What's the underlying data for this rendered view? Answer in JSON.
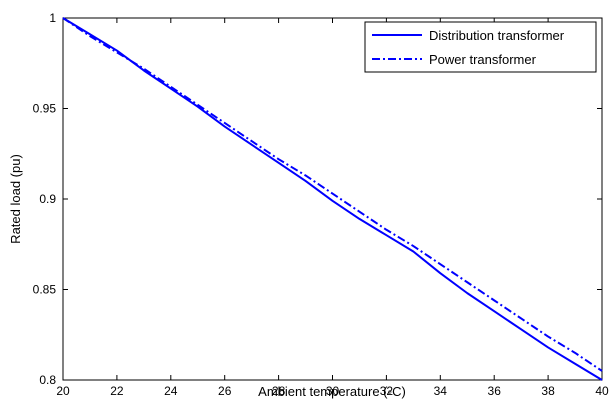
{
  "chart_data": {
    "type": "line",
    "title": "",
    "xlabel": "Ambient temperature (◦C)",
    "ylabel": "Rated load (pu)",
    "xlim": [
      20,
      40
    ],
    "ylim": [
      0.8,
      1.0
    ],
    "x_ticks": [
      20,
      22,
      24,
      26,
      28,
      30,
      32,
      34,
      36,
      38,
      40
    ],
    "x_tick_labels": [
      "20",
      "22",
      "24",
      "26",
      "28",
      "30",
      "32",
      "34",
      "36",
      "38",
      "40"
    ],
    "y_ticks": [
      0.8,
      0.85,
      0.9,
      0.95,
      1.0
    ],
    "y_tick_labels": [
      "0.8",
      "0.85",
      "0.9",
      "0.95",
      "1"
    ],
    "grid": false,
    "legend_position": "top-right",
    "series": [
      {
        "name": "Distribution transformer",
        "color": "#0000ff",
        "line_style": "solid",
        "x": [
          20,
          21,
          22,
          23,
          24,
          25,
          26,
          27,
          28,
          29,
          30,
          31,
          32,
          33,
          34,
          35,
          36,
          37,
          38,
          39,
          40
        ],
        "y": [
          1.0,
          0.991,
          0.982,
          0.971,
          0.961,
          0.951,
          0.94,
          0.93,
          0.92,
          0.91,
          0.899,
          0.889,
          0.88,
          0.871,
          0.859,
          0.848,
          0.838,
          0.828,
          0.818,
          0.809,
          0.8
        ]
      },
      {
        "name": "Power transformer",
        "color": "#0000ff",
        "line_style": "dashdot",
        "x": [
          20,
          21,
          22,
          23,
          24,
          25,
          26,
          27,
          28,
          29,
          30,
          31,
          32,
          33,
          34,
          35,
          36,
          37,
          38,
          39,
          40
        ],
        "y": [
          1.0,
          0.99,
          0.981,
          0.972,
          0.962,
          0.952,
          0.942,
          0.932,
          0.922,
          0.913,
          0.903,
          0.893,
          0.883,
          0.874,
          0.864,
          0.854,
          0.844,
          0.834,
          0.824,
          0.815,
          0.805
        ]
      }
    ]
  }
}
